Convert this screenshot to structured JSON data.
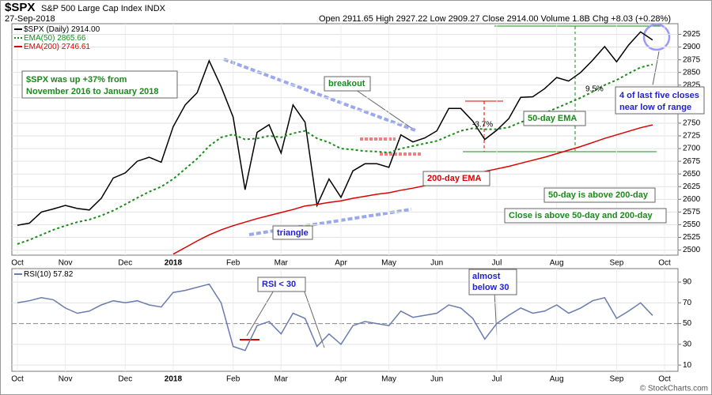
{
  "header": {
    "symbol": "$SPX",
    "name": "S&P 500 Large Cap Index",
    "exchange": "INDX",
    "date": "27-Sep-2018",
    "quote": "Open 2911.65 High 2927.22 Low 2909.27 Close 2914.00 Volume 1.8B Chg +8.03 (+0.28%)"
  },
  "watermark": "© StockCharts.com",
  "chart_data": [
    {
      "type": "line",
      "categories": [
        "Oct",
        null,
        null,
        null,
        "Nov",
        null,
        null,
        null,
        null,
        "Dec",
        null,
        null,
        null,
        "2018",
        null,
        null,
        null,
        null,
        "Feb",
        null,
        null,
        null,
        "Mar",
        null,
        null,
        null,
        null,
        "Apr",
        null,
        null,
        null,
        "May",
        null,
        null,
        null,
        "Jun",
        null,
        null,
        null,
        null,
        "Jul",
        null,
        null,
        null,
        null,
        "Aug",
        null,
        null,
        null,
        null,
        "Sep",
        null,
        null,
        null,
        "Oct"
      ],
      "series": [
        {
          "name": "$SPX (Daily)",
          "legend_value": 2914,
          "legend_value_label": "2914.00",
          "color": "#000000",
          "values": [
            2549,
            2553,
            2575,
            2581,
            2588,
            2582,
            2579,
            2602,
            2642,
            2652,
            2675,
            2683,
            2673,
            2743,
            2786,
            2810,
            2873,
            2822,
            2762,
            2619,
            2732,
            2747,
            2691,
            2786,
            2752,
            2588,
            2640,
            2604,
            2656,
            2670,
            2670,
            2663,
            2727,
            2713,
            2721,
            2735,
            2779,
            2779,
            2754,
            2718,
            2736,
            2759,
            2801,
            2802,
            2818,
            2840,
            2833,
            2850,
            2874,
            2901,
            2871,
            2904,
            2930,
            2914,
            null
          ]
        },
        {
          "name": "EMA(50)",
          "legend_value": 2865.66,
          "color": "#1a8a1a",
          "dash": true,
          "values": [
            2512,
            2520,
            2530,
            2540,
            2548,
            2555,
            2560,
            2568,
            2578,
            2590,
            2603,
            2615,
            2625,
            2640,
            2660,
            2680,
            2705,
            2722,
            2728,
            2718,
            2720,
            2725,
            2722,
            2730,
            2735,
            2720,
            2712,
            2700,
            2698,
            2695,
            2694,
            2692,
            2700,
            2705,
            2710,
            2715,
            2725,
            2735,
            2740,
            2738,
            2738,
            2742,
            2752,
            2760,
            2770,
            2780,
            2790,
            2800,
            2812,
            2825,
            2835,
            2848,
            2860,
            2865.66,
            null
          ]
        },
        {
          "name": "EMA(200)",
          "legend_value": 2746.61,
          "color": "#dd0000",
          "values": [
            null,
            null,
            null,
            null,
            null,
            null,
            null,
            null,
            null,
            null,
            null,
            null,
            null,
            2492,
            2505,
            2518,
            2530,
            2540,
            2548,
            2555,
            2562,
            2568,
            2574,
            2580,
            2587,
            2590,
            2594,
            2597,
            2602,
            2606,
            2610,
            2613,
            2618,
            2622,
            2627,
            2632,
            2638,
            2644,
            2650,
            2655,
            2660,
            2665,
            2671,
            2677,
            2683,
            2690,
            2697,
            2704,
            2712,
            2720,
            2727,
            2734,
            2741,
            2746.61,
            null
          ]
        }
      ],
      "ylim": [
        2490,
        2946
      ],
      "yticks": [
        2500,
        2525,
        2550,
        2575,
        2600,
        2625,
        2650,
        2675,
        2700,
        2725,
        2750,
        2775,
        2800,
        2825,
        2850,
        2875,
        2900,
        2925
      ],
      "annotations": [
        {
          "lines": [
            "$SPX was up +37% from",
            "November 2016 to January 2018"
          ]
        },
        {
          "lines": [
            "breakout"
          ]
        },
        {
          "lines": [
            "triangle"
          ]
        },
        {
          "lines": [
            "200-day EMA"
          ]
        },
        {
          "lines": [
            "50-day EMA"
          ]
        },
        {
          "lines": [
            "50-day is above 200-day"
          ]
        },
        {
          "lines": [
            "Close is above 50-day and 200-day"
          ]
        },
        {
          "lines": [
            "4 of last five closes",
            "near low of range"
          ]
        },
        {
          "lines": [
            "9.5%"
          ]
        },
        {
          "lines": [
            "-3.7%"
          ]
        }
      ]
    },
    {
      "type": "line",
      "categories": [
        "Oct",
        null,
        null,
        null,
        "Nov",
        null,
        null,
        null,
        null,
        "Dec",
        null,
        null,
        null,
        "2018",
        null,
        null,
        null,
        null,
        "Feb",
        null,
        null,
        null,
        "Mar",
        null,
        null,
        null,
        null,
        "Apr",
        null,
        null,
        null,
        "May",
        null,
        null,
        null,
        "Jun",
        null,
        null,
        null,
        null,
        "Jul",
        null,
        null,
        null,
        null,
        "Aug",
        null,
        null,
        null,
        null,
        "Sep",
        null,
        null,
        null,
        "Oct"
      ],
      "series": [
        {
          "name": "RSI(10)",
          "legend_value": 57.82,
          "color": "#6a7bb0",
          "values": [
            70,
            72,
            75,
            73,
            65,
            60,
            62,
            68,
            72,
            70,
            72,
            68,
            66,
            80,
            82,
            85,
            88,
            70,
            28,
            24,
            48,
            52,
            40,
            60,
            55,
            28,
            40,
            30,
            48,
            52,
            50,
            48,
            62,
            56,
            58,
            60,
            68,
            65,
            55,
            35,
            50,
            58,
            65,
            60,
            62,
            68,
            60,
            65,
            72,
            75,
            55,
            62,
            70,
            57.82,
            null
          ]
        }
      ],
      "ylim": [
        4,
        103
      ],
      "yticks": [
        10,
        30,
        50,
        70,
        90
      ],
      "annotations": [
        {
          "lines": [
            "RSI < 30"
          ]
        },
        {
          "lines": [
            "almost",
            "below 30"
          ]
        }
      ]
    }
  ]
}
